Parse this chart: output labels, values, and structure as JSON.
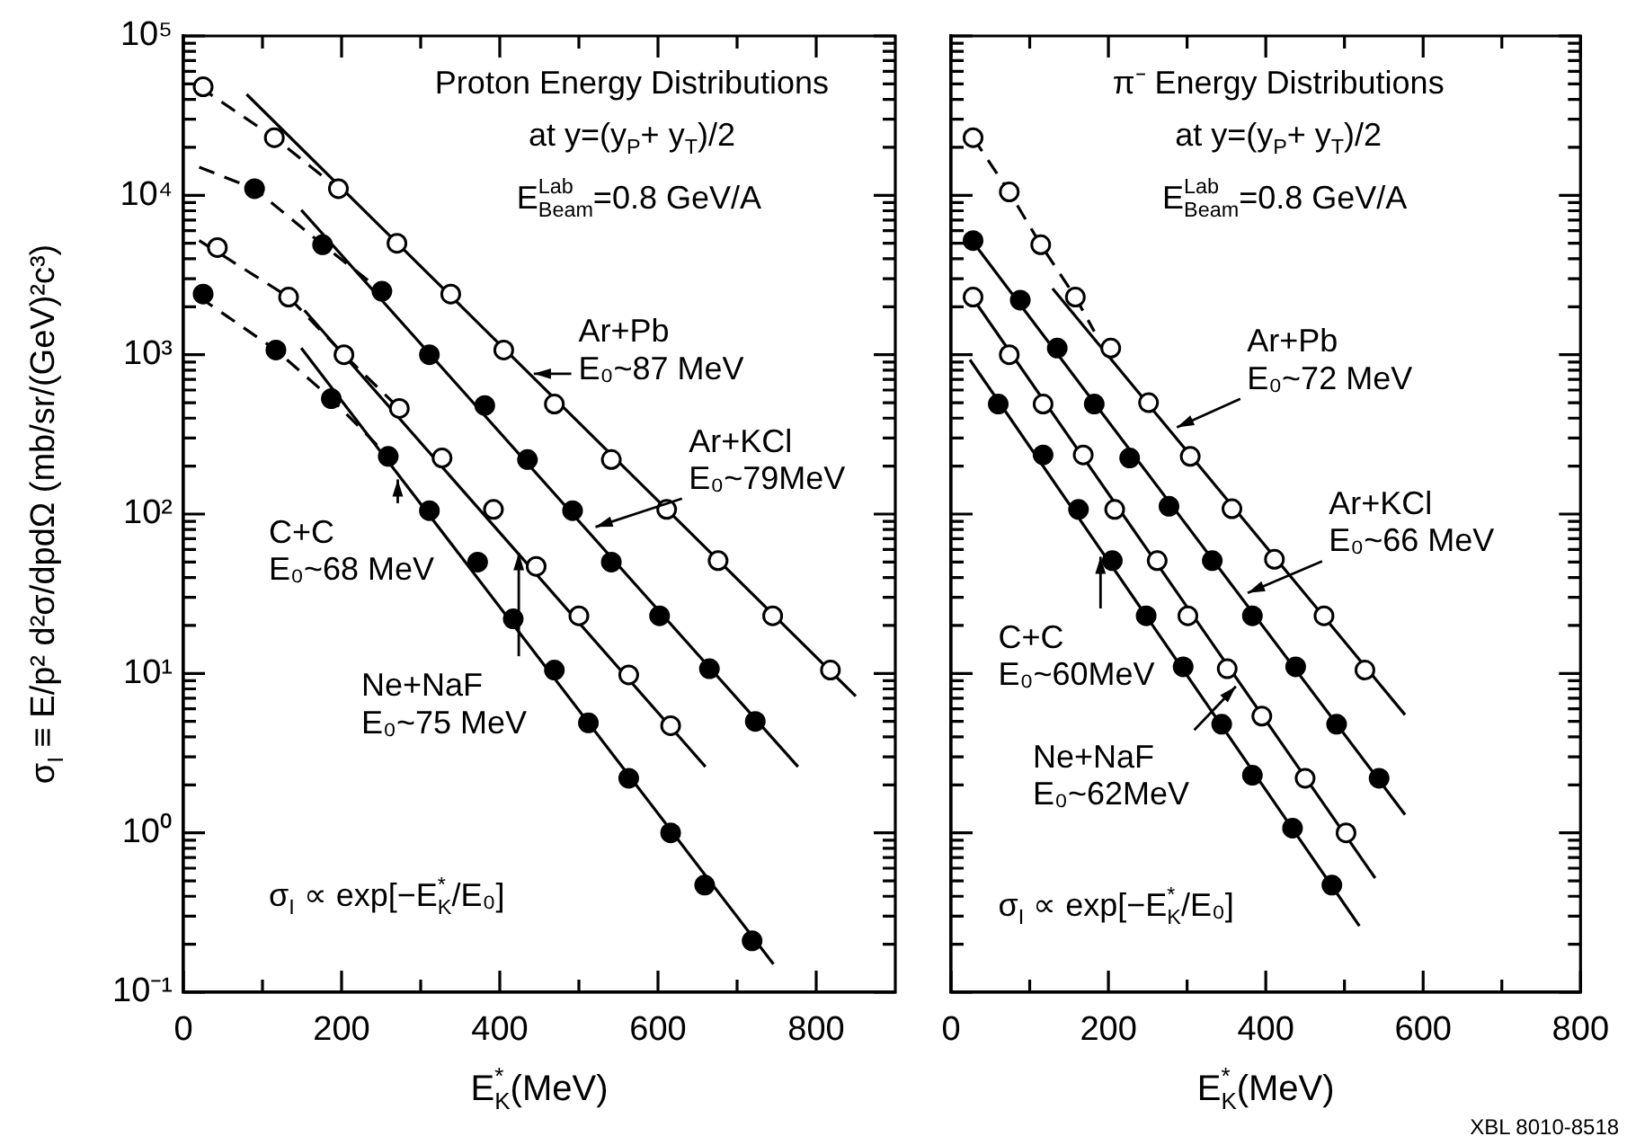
{
  "chart_data": [
    {
      "type": "scatter",
      "xlabel": "E$^{*}$$_{K}$(MeV)",
      "ylabel": "σ$_{I}$ ≡ E/p² d²σ/dpdΩ (mb/sr/(GeV)²c³)",
      "xlim": [
        0,
        900
      ],
      "xticks": [
        0,
        {
          "value": 100,
          "label": null
        },
        200,
        {
          "value": 300,
          "label": null
        },
        400,
        {
          "value": 500,
          "label": null
        },
        600,
        {
          "value": 700,
          "label": null
        },
        800
      ],
      "ylim": [
        0.1,
        100000
      ],
      "log": "y",
      "grid": false,
      "legend": false,
      "marker": "circle",
      "yticks": [
        {
          "value": 0.1,
          "label": "10⁻¹"
        },
        {
          "value": 0.2,
          "label": null
        },
        {
          "value": 0.3,
          "label": null
        },
        {
          "value": 0.4,
          "label": null
        },
        {
          "value": 0.5,
          "label": null
        },
        {
          "value": 0.6,
          "label": null
        },
        {
          "value": 0.7,
          "label": null
        },
        {
          "value": 0.8,
          "label": null
        },
        {
          "value": 0.9,
          "label": null
        },
        {
          "value": 1,
          "label": "10⁰"
        },
        {
          "value": 2,
          "label": null
        },
        {
          "value": 3,
          "label": null
        },
        {
          "value": 4,
          "label": null
        },
        {
          "value": 5,
          "label": null
        },
        {
          "value": 6,
          "label": null
        },
        {
          "value": 7,
          "label": null
        },
        {
          "value": 8,
          "label": null
        },
        {
          "value": 9,
          "label": null
        },
        {
          "value": 10,
          "label": "10¹"
        },
        {
          "value": 20,
          "label": null
        },
        {
          "value": 30,
          "label": null
        },
        {
          "value": 40,
          "label": null
        },
        {
          "value": 50,
          "label": null
        },
        {
          "value": 60,
          "label": null
        },
        {
          "value": 70,
          "label": null
        },
        {
          "value": 80,
          "label": null
        },
        {
          "value": 90,
          "label": null
        },
        {
          "value": 100,
          "label": "10²"
        },
        {
          "value": 200,
          "label": null
        },
        {
          "value": 300,
          "label": null
        },
        {
          "value": 400,
          "label": null
        },
        {
          "value": 500,
          "label": null
        },
        {
          "value": 600,
          "label": null
        },
        {
          "value": 700,
          "label": null
        },
        {
          "value": 800,
          "label": null
        },
        {
          "value": 900,
          "label": null
        },
        {
          "value": 1000,
          "label": "10³"
        },
        {
          "value": 2000,
          "label": null
        },
        {
          "value": 3000,
          "label": null
        },
        {
          "value": 4000,
          "label": null
        },
        {
          "value": 5000,
          "label": null
        },
        {
          "value": 6000,
          "label": null
        },
        {
          "value": 7000,
          "label": null
        },
        {
          "value": 8000,
          "label": null
        },
        {
          "value": 9000,
          "label": null
        },
        {
          "value": 10000,
          "label": "10⁴"
        },
        {
          "value": 20000,
          "label": null
        },
        {
          "value": 30000,
          "label": null
        },
        {
          "value": 40000,
          "label": null
        },
        {
          "value": 50000,
          "label": null
        },
        {
          "value": 60000,
          "label": null
        },
        {
          "value": 70000,
          "label": null
        },
        {
          "value": 80000,
          "label": null
        },
        {
          "value": 90000,
          "label": null
        },
        {
          "value": 100000,
          "label": "10⁵"
        }
      ],
      "series": [
        {
          "color": "#ffffff",
          "x": [
            25,
            115,
            196,
            270,
            338,
            405,
            469,
            541,
            611,
            676,
            745,
            818
          ],
          "values": [
            48000,
            23000,
            11000,
            5000,
            2400,
            1070,
            490,
            220,
            107,
            51,
            23,
            10.5
          ]
        },
        {
          "color": "#000000",
          "x": [
            90,
            176,
            251,
            311,
            381,
            435,
            492,
            541,
            602,
            665,
            723
          ],
          "values": [
            11000,
            4900,
            2500,
            1000,
            480,
            220,
            105,
            50,
            23,
            10.7,
            5
          ]
        },
        {
          "color": "#ffffff",
          "x": [
            43,
            133,
            203,
            273,
            327,
            392,
            446,
            500,
            563,
            616
          ],
          "values": [
            4700,
            2300,
            1000,
            460,
            225,
            107,
            47,
            23,
            9.8,
            4.7
          ]
        },
        {
          "color": "#000000",
          "x": [
            25,
            117,
            187,
            259,
            311,
            372,
            417,
            469,
            512,
            563,
            616,
            659,
            719
          ],
          "values": [
            2400,
            1070,
            530,
            230,
            105,
            50,
            22,
            10.5,
            4.9,
            2.2,
            1,
            0.47,
            0.21
          ]
        },
        {
          "type": "line",
          "marker": "none",
          "line_style": "solid",
          "color": "#000000",
          "x": [
            80,
            850
          ],
          "values": [
            43000,
            7.2
          ]
        },
        {
          "type": "line",
          "marker": "none",
          "line_style": "solid",
          "color": "#000000",
          "x": [
            149,
            777
          ],
          "values": [
            8100,
            2.6
          ]
        },
        {
          "type": "line",
          "marker": "none",
          "line_style": "solid",
          "color": "#000000",
          "x": [
            153,
            660
          ],
          "values": [
            1900,
            2.6
          ]
        },
        {
          "type": "line",
          "marker": "none",
          "line_style": "solid",
          "color": "#000000",
          "x": [
            149,
            746
          ],
          "values": [
            1100,
            0.15
          ]
        },
        {
          "type": "line",
          "marker": "none",
          "line_style": "dashed",
          "color": "#000000",
          "x": [
            20,
            115,
            196
          ],
          "values": [
            48000,
            23000,
            11000
          ]
        },
        {
          "type": "line",
          "marker": "none",
          "line_style": "dashed",
          "color": "#000000",
          "x": [
            20,
            90,
            176,
            251
          ],
          "values": [
            15000,
            11000,
            4900,
            2500
          ]
        },
        {
          "type": "line",
          "marker": "none",
          "line_style": "dashed",
          "color": "#000000",
          "x": [
            20,
            133,
            203,
            273
          ],
          "values": [
            5200,
            2300,
            1000,
            460
          ]
        },
        {
          "type": "line",
          "marker": "none",
          "line_style": "dashed",
          "color": "#000000",
          "x": [
            20,
            117,
            187,
            259
          ],
          "values": [
            2300,
            1070,
            530,
            230
          ]
        }
      ],
      "annotations": [
        "Proton Energy Distributions",
        "at y=(y$_{P}$+ y$_{T}$)/2",
        "E$^{Lab}$$_{Beam}$=0.8 GeV/A",
        {
          "text": "Ar+Pb\nE₀~87 MeV",
          "x": 443,
          "y": 760
        },
        {
          "text": "Ar+KCl\nE₀~79MeV",
          "x": 521,
          "y": 83
        },
        {
          "text": "C+C\nE₀~68 MeV",
          "x": 271,
          "y": 165
        },
        {
          "text": "Ne+NaF\nE₀~75 MeV",
          "x": 424,
          "y": 57
        },
        "σ$_{I}$ ∝ exp[−E$^{*}$$_{K}$/E₀]"
      ]
    },
    {
      "type": "scatter",
      "xlabel": "E$^{*}$$_{K}$(MeV)",
      "xlim": [
        0,
        800
      ],
      "xticks": [
        0,
        {
          "value": 100,
          "label": null
        },
        200,
        {
          "value": 300,
          "label": null
        },
        400,
        {
          "value": 500,
          "label": null
        },
        600,
        {
          "value": 700,
          "label": null
        },
        800
      ],
      "ylim": [
        0.1,
        100000
      ],
      "log": "y",
      "grid": false,
      "legend": false,
      "marker": "circle",
      "tick_labels": "x",
      "yticks": [
        0.1,
        {
          "value": 0.2,
          "label": null
        },
        {
          "value": 0.3,
          "label": null
        },
        {
          "value": 0.4,
          "label": null
        },
        {
          "value": 0.5,
          "label": null
        },
        {
          "value": 0.6,
          "label": null
        },
        {
          "value": 0.7,
          "label": null
        },
        {
          "value": 0.8,
          "label": null
        },
        {
          "value": 0.9,
          "label": null
        },
        1,
        {
          "value": 2,
          "label": null
        },
        {
          "value": 3,
          "label": null
        },
        {
          "value": 4,
          "label": null
        },
        {
          "value": 5,
          "label": null
        },
        {
          "value": 6,
          "label": null
        },
        {
          "value": 7,
          "label": null
        },
        {
          "value": 8,
          "label": null
        },
        {
          "value": 9,
          "label": null
        },
        10,
        {
          "value": 20,
          "label": null
        },
        {
          "value": 30,
          "label": null
        },
        {
          "value": 40,
          "label": null
        },
        {
          "value": 50,
          "label": null
        },
        {
          "value": 60,
          "label": null
        },
        {
          "value": 70,
          "label": null
        },
        {
          "value": 80,
          "label": null
        },
        {
          "value": 90,
          "label": null
        },
        100,
        {
          "value": 200,
          "label": null
        },
        {
          "value": 300,
          "label": null
        },
        {
          "value": 400,
          "label": null
        },
        {
          "value": 500,
          "label": null
        },
        {
          "value": 600,
          "label": null
        },
        {
          "value": 700,
          "label": null
        },
        {
          "value": 800,
          "label": null
        },
        {
          "value": 900,
          "label": null
        },
        1000,
        {
          "value": 2000,
          "label": null
        },
        {
          "value": 3000,
          "label": null
        },
        {
          "value": 4000,
          "label": null
        },
        {
          "value": 5000,
          "label": null
        },
        {
          "value": 6000,
          "label": null
        },
        {
          "value": 7000,
          "label": null
        },
        {
          "value": 8000,
          "label": null
        },
        {
          "value": 9000,
          "label": null
        },
        10000,
        {
          "value": 20000,
          "label": null
        },
        {
          "value": 30000,
          "label": null
        },
        {
          "value": 40000,
          "label": null
        },
        {
          "value": 50000,
          "label": null
        },
        {
          "value": 60000,
          "label": null
        },
        {
          "value": 70000,
          "label": null
        },
        {
          "value": 80000,
          "label": null
        },
        {
          "value": 90000,
          "label": null
        },
        100000
      ],
      "series": [
        {
          "color": "#ffffff",
          "x": [
            28,
            74,
            114,
            158,
            203,
            251,
            304,
            357,
            411,
            474,
            526
          ],
          "values": [
            23000,
            10500,
            4900,
            2300,
            1100,
            500,
            230,
            108,
            52,
            23,
            10.5
          ]
        },
        {
          "color": "#000000",
          "x": [
            28,
            88,
            135,
            182,
            227,
            277,
            332,
            383,
            438,
            490,
            544
          ],
          "values": [
            5200,
            2200,
            1100,
            490,
            225,
            112,
            51,
            23,
            11,
            4.8,
            2.2
          ]
        },
        {
          "color": "#ffffff",
          "x": [
            28,
            74,
            117,
            168,
            208,
            262,
            301,
            351,
            395,
            450,
            502
          ],
          "values": [
            2300,
            1000,
            490,
            235,
            107,
            51,
            23,
            10.7,
            5.4,
            2.2,
            1
          ]
        },
        {
          "color": "#000000",
          "x": [
            60,
            117,
            162,
            205,
            248,
            295,
            344,
            383,
            434,
            484
          ],
          "values": [
            490,
            235,
            107,
            51,
            23,
            11,
            4.8,
            2.3,
            1.07,
            0.47
          ]
        },
        {
          "type": "line",
          "marker": "none",
          "line_style": "solid",
          "color": "#000000",
          "x": [
            129,
            577
          ],
          "values": [
            2600,
            5.5
          ]
        },
        {
          "type": "line",
          "marker": "none",
          "line_style": "solid",
          "color": "#000000",
          "x": [
            24,
            577
          ],
          "values": [
            5400,
            1.3
          ]
        },
        {
          "type": "line",
          "marker": "none",
          "line_style": "solid",
          "color": "#000000",
          "x": [
            24,
            539
          ],
          "values": [
            2400,
            0.52
          ]
        },
        {
          "type": "line",
          "marker": "none",
          "line_style": "solid",
          "color": "#000000",
          "x": [
            24,
            519
          ],
          "values": [
            930,
            0.26
          ]
        },
        {
          "type": "line",
          "marker": "none",
          "line_style": "dashed",
          "color": "#000000",
          "x": [
            28,
            74,
            114,
            158,
            182
          ],
          "values": [
            23000,
            10500,
            4900,
            2300,
            1400
          ]
        }
      ],
      "annotations": [
        "π⁻ Energy Distributions",
        "at y=(y$_{P}$+ y$_{T}$)/2",
        "E$^{Lab}$$_{Beam}$=0.8 GeV/A",
        {
          "text": "Ar+Pb\nE₀~72 MeV",
          "x": 287,
          "y": 350
        },
        {
          "text": "Ar+KCl\nE₀~66 MeV",
          "x": 377,
          "y": 32
        },
        {
          "text": "C+C\nE₀~60MeV",
          "x": 190,
          "y": 54
        },
        {
          "text": "Ne+NaF\nE₀~62MeV",
          "x": 362,
          "y": 8.3
        },
        "σ$_{I}$ ∝ exp[−E$^{*}$$_{K}$/E₀]",
        "XBL 8010-8518"
      ]
    }
  ]
}
